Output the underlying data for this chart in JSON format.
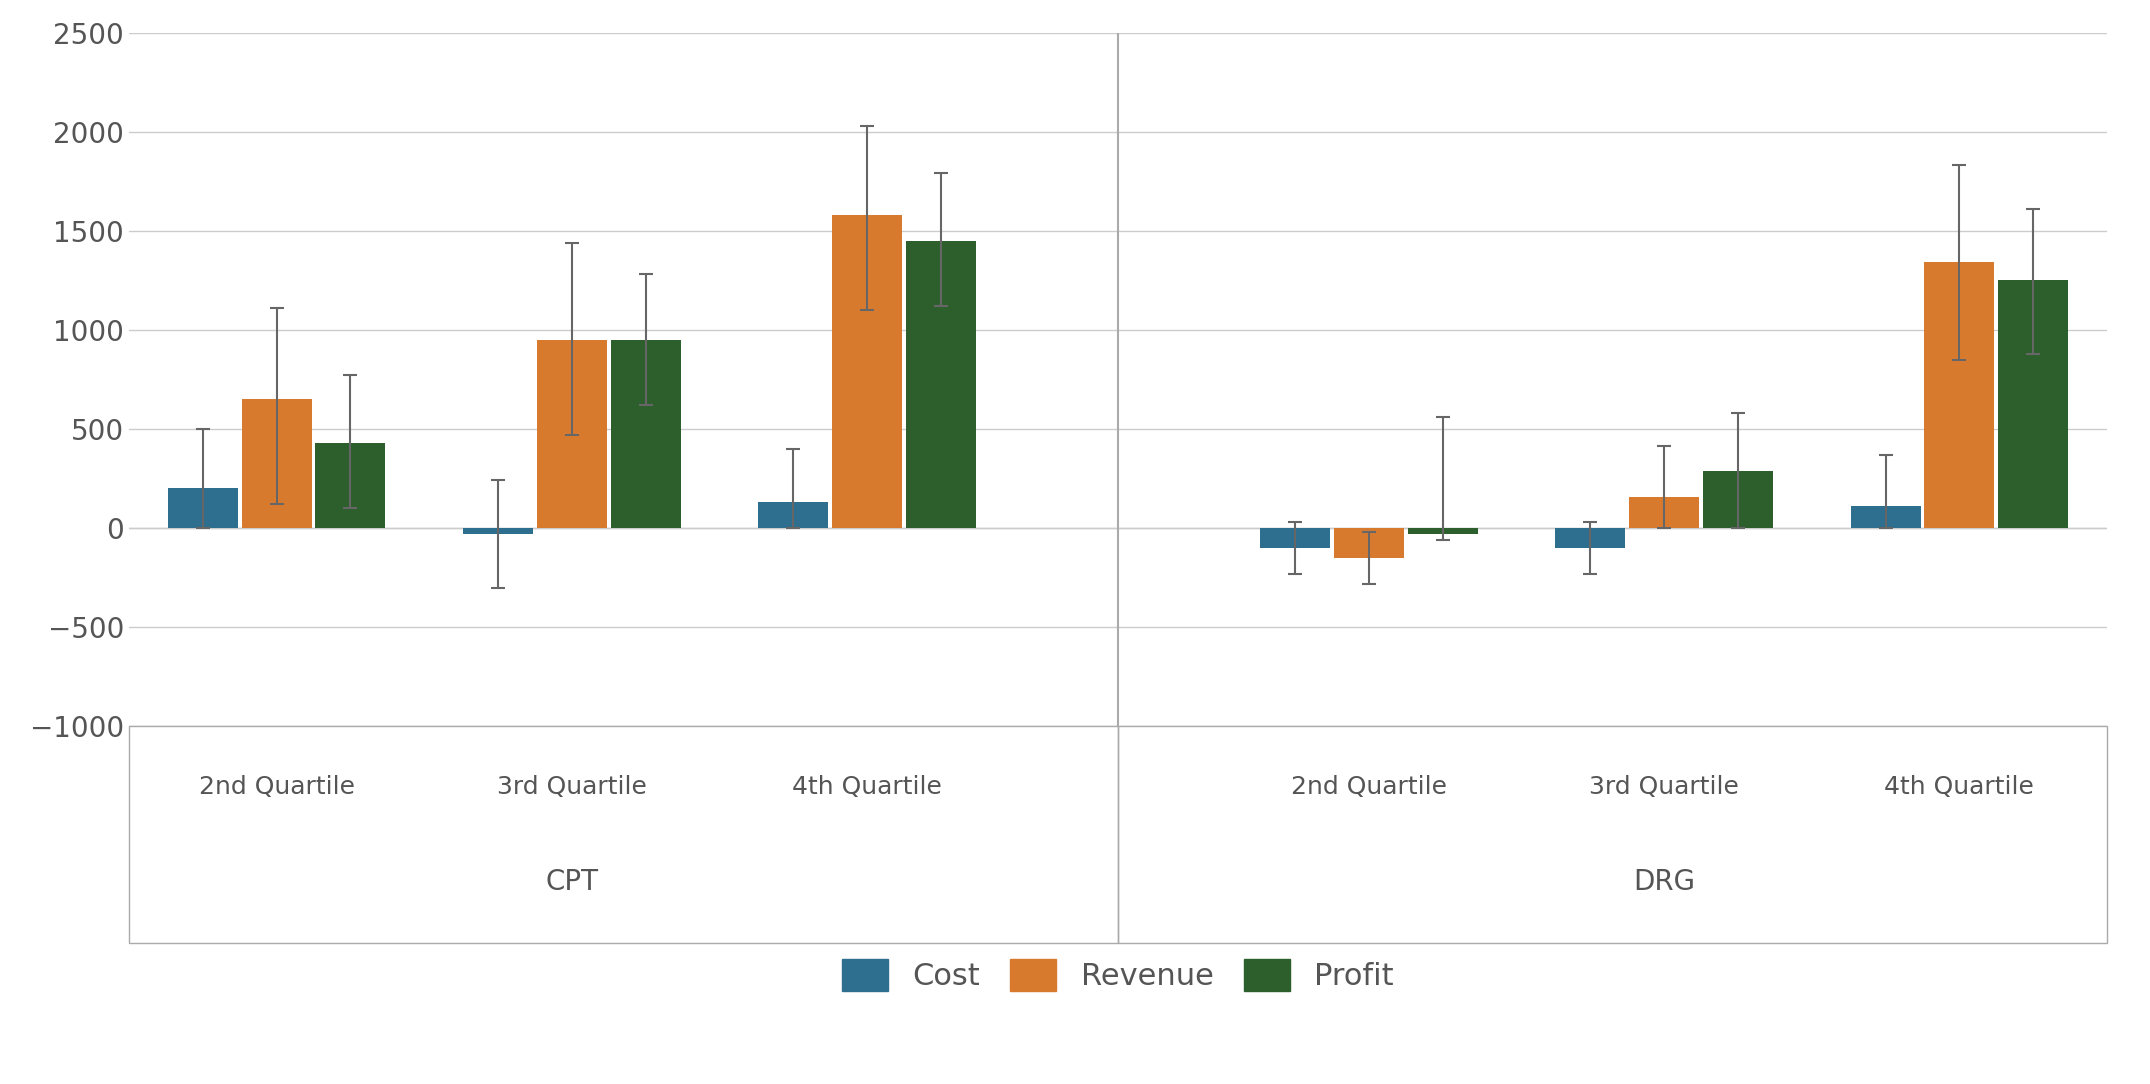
{
  "groups": [
    {
      "label": "2nd Quartile",
      "section": "CPT",
      "cost": 200,
      "revenue": 650,
      "profit": 430,
      "cost_err_low": 200,
      "cost_err_high": 300,
      "revenue_err_low": 530,
      "revenue_err_high": 460,
      "profit_err_low": 330,
      "profit_err_high": 340
    },
    {
      "label": "3rd Quartile",
      "section": "CPT",
      "cost": -30,
      "revenue": 950,
      "profit": 950,
      "cost_err_low": 270,
      "cost_err_high": 270,
      "revenue_err_low": 480,
      "revenue_err_high": 490,
      "profit_err_low": 330,
      "profit_err_high": 330
    },
    {
      "label": "4th Quartile",
      "section": "CPT",
      "cost": 130,
      "revenue": 1580,
      "profit": 1450,
      "cost_err_low": 130,
      "cost_err_high": 270,
      "revenue_err_low": 480,
      "revenue_err_high": 450,
      "profit_err_low": 330,
      "profit_err_high": 340
    },
    {
      "label": "2nd Quartile",
      "section": "DRG",
      "cost": -100,
      "revenue": -150,
      "profit": -30,
      "cost_err_low": 130,
      "cost_err_high": 130,
      "revenue_err_low": 130,
      "revenue_err_high": 130,
      "profit_err_low": 30,
      "profit_err_high": 590
    },
    {
      "label": "3rd Quartile",
      "section": "DRG",
      "cost": -100,
      "revenue": 155,
      "profit": 290,
      "cost_err_low": 130,
      "cost_err_high": 130,
      "revenue_err_low": 155,
      "revenue_err_high": 260,
      "profit_err_low": 290,
      "profit_err_high": 290
    },
    {
      "label": "4th Quartile",
      "section": "DRG",
      "cost": 110,
      "revenue": 1340,
      "profit": 1250,
      "cost_err_low": 110,
      "cost_err_high": 260,
      "revenue_err_low": 490,
      "revenue_err_high": 490,
      "profit_err_low": 370,
      "profit_err_high": 360
    }
  ],
  "cost_color": "#2e6e8e",
  "revenue_color": "#d87a2e",
  "profit_color": "#2d5f2d",
  "error_color": "#666666",
  "background_color": "#ffffff",
  "grid_color": "#cccccc",
  "text_color": "#555555",
  "ylim_min": -1000,
  "ylim_max": 2500,
  "yticks": [
    -1000,
    -500,
    0,
    500,
    1000,
    1500,
    2000,
    2500
  ],
  "bar_width": 0.25,
  "capsize": 5,
  "legend_labels": [
    "Cost",
    "Revenue",
    "Profit"
  ],
  "section_labels": [
    "CPT",
    "DRG"
  ]
}
